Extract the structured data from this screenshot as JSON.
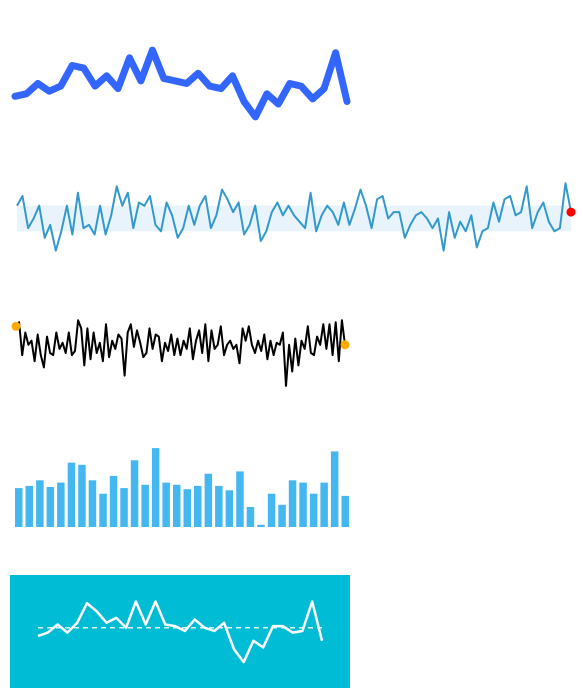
{
  "colors": {
    "s1_line": "#3366ff",
    "s2_line": "#3399cc",
    "s2_band": "#e8f3fb",
    "s2_last_marker": "#ff0000",
    "s3_line": "#000000",
    "s3_marker": "#ffaa00",
    "s4_bar": "#44b7f0",
    "s5_bg": "#00bcd4",
    "s5_line": "#ffffff"
  },
  "chart_data": [
    {
      "type": "line",
      "values": [
        48,
        49,
        53,
        50,
        52,
        60,
        59,
        52,
        56,
        51,
        63,
        54,
        66,
        55,
        54,
        53,
        57,
        52,
        51,
        56,
        46,
        40,
        49,
        45,
        53,
        52,
        47,
        51,
        65,
        46
      ],
      "ylim": [
        38,
        68
      ],
      "line_width": 7
    },
    {
      "type": "line",
      "values": [
        52,
        55,
        45,
        48,
        52,
        42,
        46,
        38,
        44,
        52,
        43,
        56,
        45,
        46,
        43,
        52,
        43,
        49,
        58,
        52,
        56,
        45,
        53,
        52,
        55,
        46,
        44,
        53,
        49,
        42,
        45,
        52,
        46,
        52,
        55,
        45,
        49,
        57,
        54,
        50,
        53,
        43,
        46,
        52,
        41,
        44,
        50,
        53,
        49,
        52,
        49,
        47,
        45,
        56,
        44,
        49,
        52,
        50,
        46,
        53,
        46,
        51,
        57,
        52,
        45,
        54,
        55,
        48,
        50,
        50,
        42,
        46,
        49,
        50,
        48,
        45,
        48,
        38,
        50,
        42,
        47,
        44,
        49,
        39,
        44,
        45,
        53,
        47,
        54,
        55,
        49,
        50,
        58,
        45,
        50,
        53,
        47,
        44,
        45,
        59,
        50
      ],
      "band": [
        44,
        52
      ],
      "ylim": [
        36,
        60
      ],
      "last_marker": true
    },
    {
      "type": "line",
      "values": [
        54,
        56,
        40,
        51,
        45,
        47,
        37,
        50,
        40,
        34,
        49,
        41,
        40,
        51,
        43,
        46,
        41,
        51,
        40,
        42,
        57,
        53,
        35,
        53,
        38,
        51,
        41,
        46,
        37,
        55,
        39,
        47,
        43,
        50,
        48,
        30,
        51,
        55,
        44,
        52,
        46,
        39,
        41,
        53,
        43,
        50,
        49,
        37,
        46,
        42,
        50,
        40,
        48,
        40,
        47,
        43,
        53,
        38,
        47,
        52,
        41,
        55,
        37,
        52,
        43,
        45,
        54,
        40,
        45,
        47,
        43,
        45,
        36,
        53,
        47,
        54,
        45,
        41,
        47,
        42,
        50,
        38,
        47,
        40,
        46,
        45,
        51,
        25,
        45,
        32,
        48,
        35,
        47,
        43,
        54,
        41,
        40,
        49,
        45,
        55,
        43,
        55,
        40,
        56,
        37,
        57,
        45
      ],
      "ylim": [
        23,
        60
      ],
      "end_markers": true
    },
    {
      "type": "bar",
      "values": [
        35,
        37,
        42,
        36,
        40,
        58,
        56,
        42,
        30,
        46,
        35,
        60,
        38,
        71,
        40,
        38,
        34,
        37,
        48,
        37,
        33,
        50,
        18,
        2,
        30,
        20,
        42,
        40,
        30,
        40,
        68,
        28
      ],
      "ylim": [
        0,
        72
      ]
    },
    {
      "type": "line",
      "values": [
        45,
        47,
        52,
        47,
        53,
        65,
        60,
        53,
        56,
        50,
        66,
        52,
        66,
        52,
        51,
        48,
        55,
        50,
        48,
        53,
        37,
        29,
        42,
        38,
        51,
        51,
        47,
        48,
        66,
        42
      ],
      "ylim": [
        26,
        70
      ],
      "reference_line": 50,
      "background": true
    }
  ]
}
